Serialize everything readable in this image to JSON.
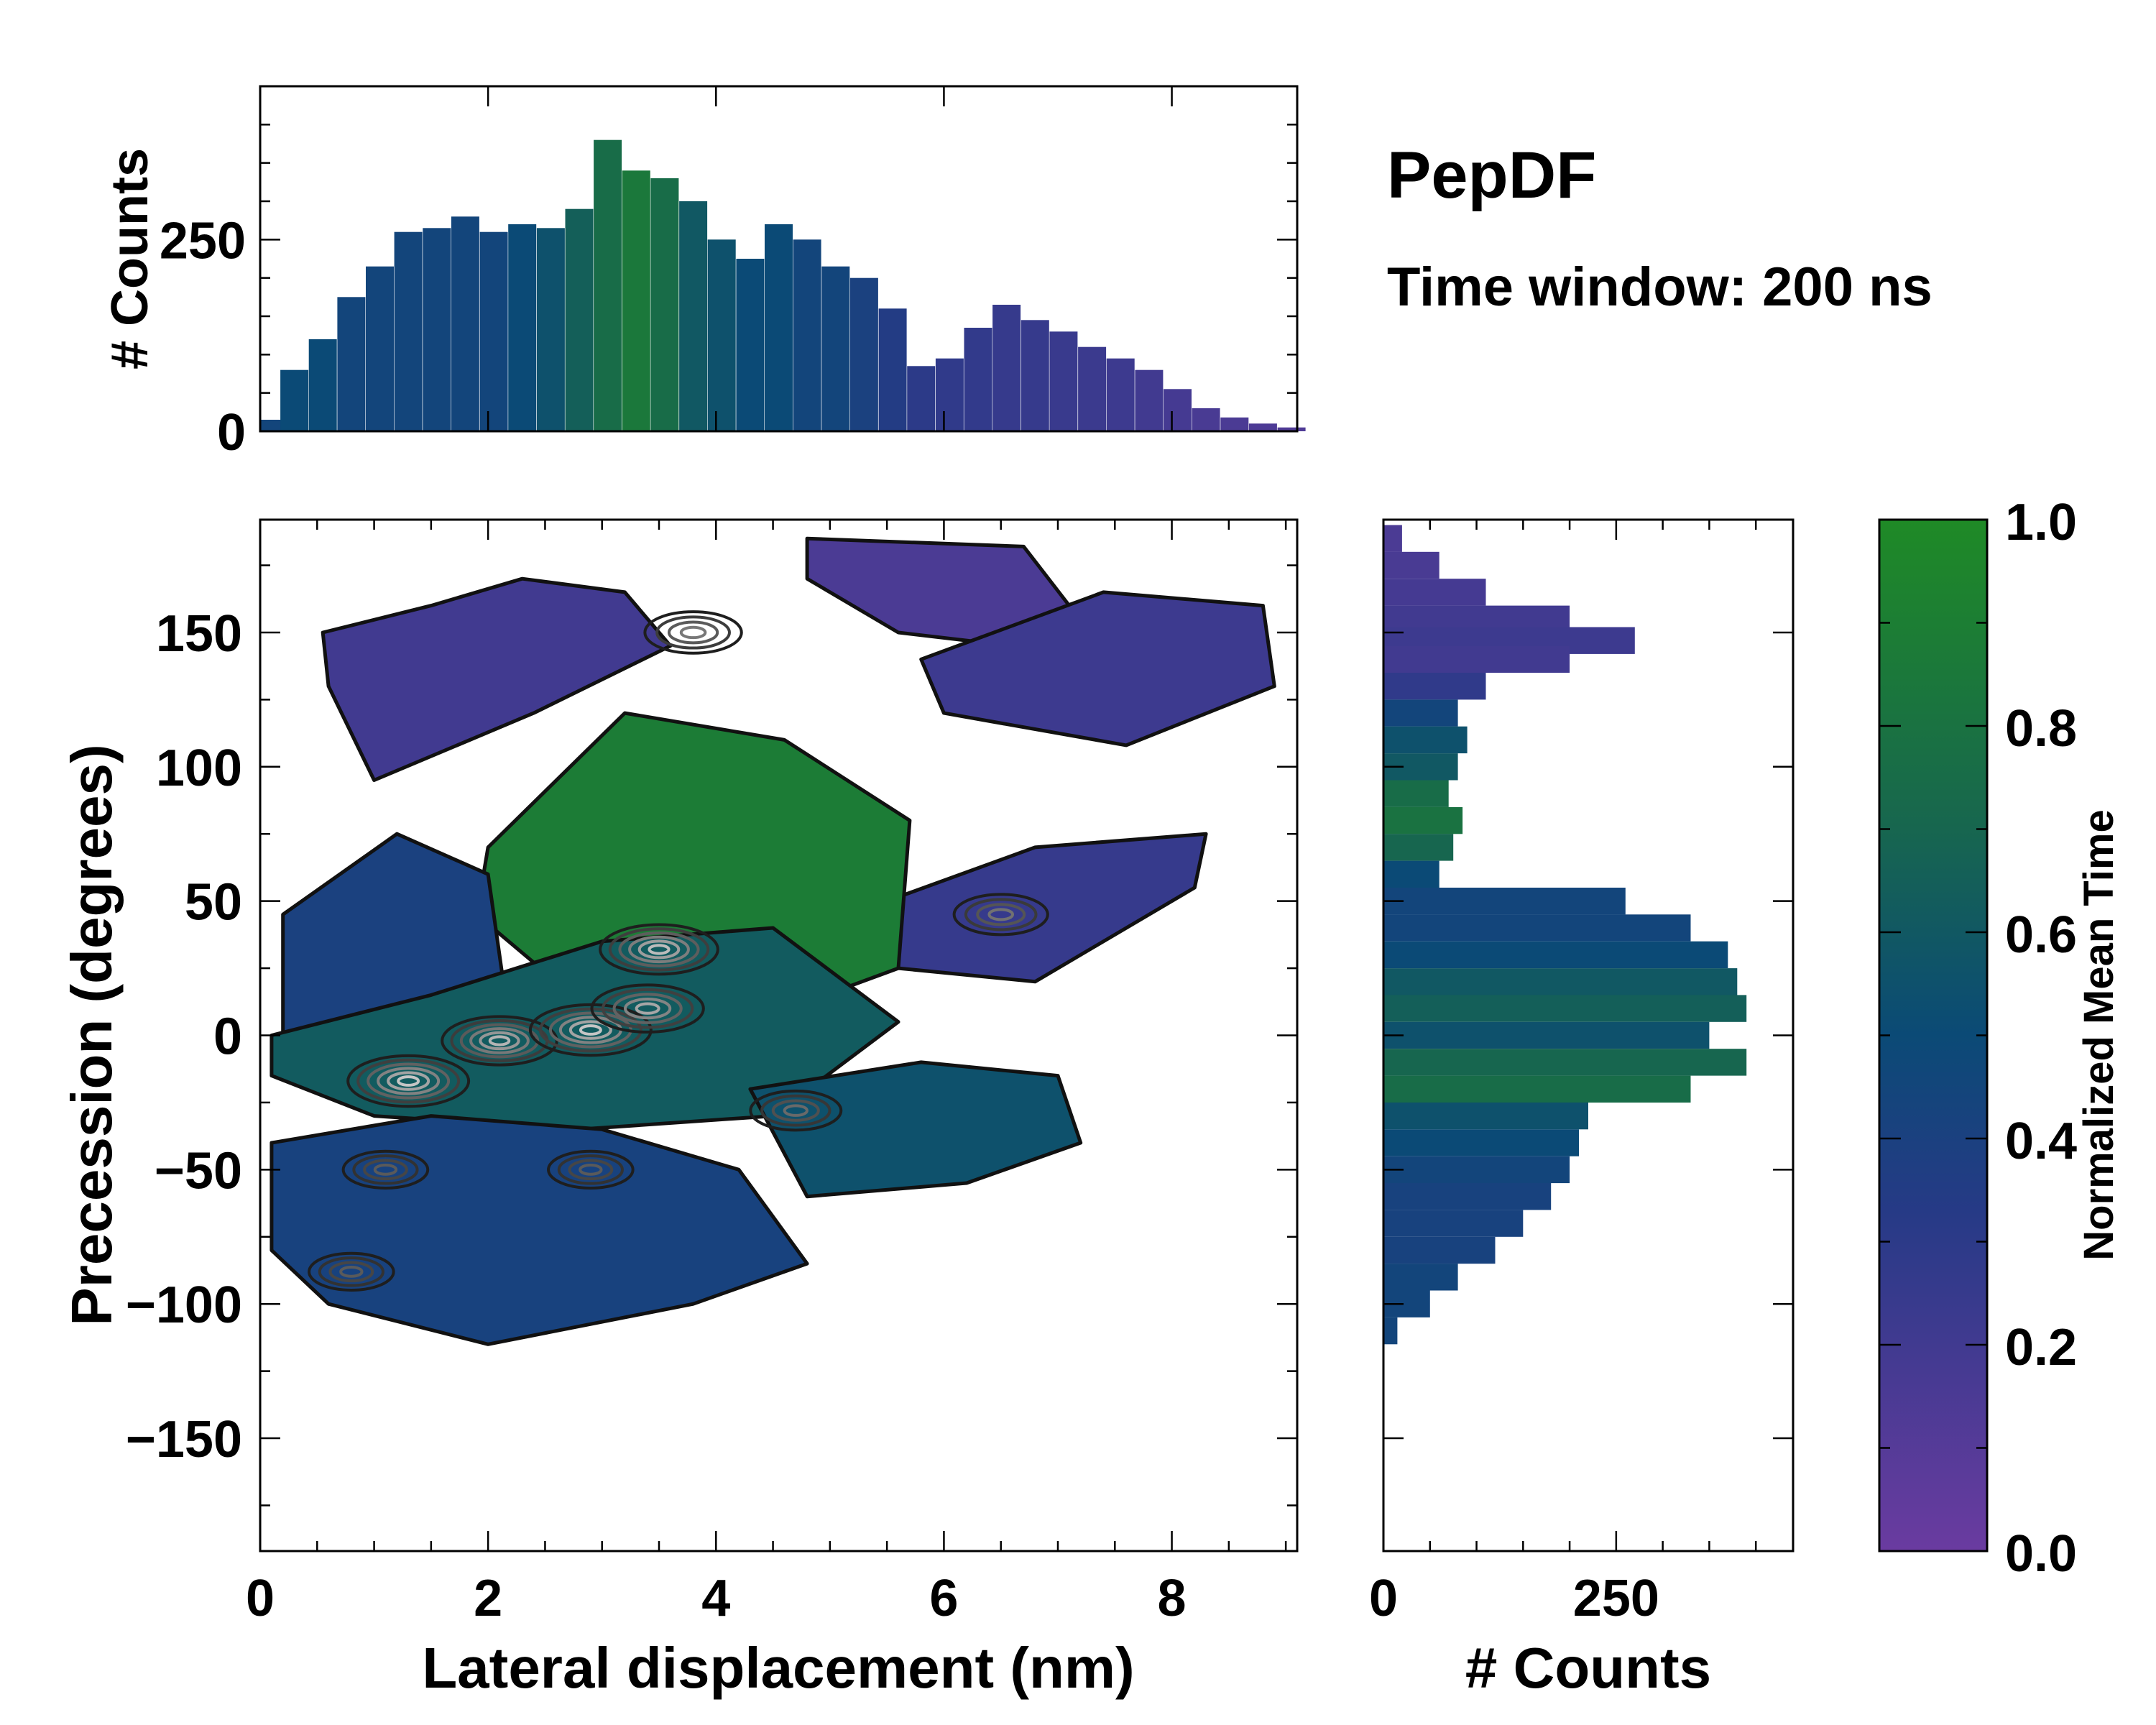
{
  "chart_data": {
    "type": "heatmap",
    "title": "PepDF",
    "subtitle": "Time window: 200 ns",
    "main": {
      "xlabel": "Lateral displacement (nm)",
      "ylabel": "Precession (degrees)",
      "xlim": [
        0,
        9.1
      ],
      "ylim": [
        -192,
        192
      ],
      "xticks": [
        0,
        2,
        4,
        6,
        8
      ],
      "yticks": [
        -150,
        -100,
        -50,
        0,
        50,
        100,
        150
      ],
      "ytick_labels": [
        "−150",
        "−100",
        "−50",
        "0",
        "50",
        "100",
        "150"
      ],
      "regions": [
        {
          "name": "upper-violet",
          "mean_time": 0.2,
          "x": [
            0.55,
            1.5,
            2.3,
            3.2,
            3.6,
            2.4,
            1.0,
            0.6
          ],
          "y": [
            150,
            160,
            170,
            165,
            145,
            120,
            95,
            130
          ]
        },
        {
          "name": "upper-right-violet",
          "mean_time": 0.15,
          "x": [
            4.8,
            6.7,
            7.1,
            6.6,
            5.6,
            4.8
          ],
          "y": [
            185,
            182,
            160,
            145,
            150,
            170
          ]
        },
        {
          "name": "right-violet",
          "mean_time": 0.22,
          "x": [
            5.8,
            7.4,
            8.8,
            8.9,
            7.6,
            6.0
          ],
          "y": [
            140,
            165,
            160,
            130,
            108,
            120
          ]
        },
        {
          "name": "mid-right-violet",
          "mean_time": 0.25,
          "x": [
            5.5,
            6.8,
            8.3,
            8.2,
            6.8,
            5.6
          ],
          "y": [
            50,
            70,
            75,
            55,
            20,
            25
          ]
        },
        {
          "name": "center-green",
          "mean_time": 0.88,
          "x": [
            2.0,
            3.2,
            4.6,
            5.7,
            5.6,
            4.0,
            2.6,
            1.9
          ],
          "y": [
            70,
            120,
            110,
            80,
            25,
            0,
            20,
            45
          ]
        },
        {
          "name": "left-blue",
          "mean_time": 0.4,
          "x": [
            0.2,
            1.2,
            2.0,
            2.2,
            1.2,
            0.2
          ],
          "y": [
            45,
            75,
            60,
            0,
            -10,
            0
          ]
        },
        {
          "name": "center-teal",
          "mean_time": 0.62,
          "x": [
            0.1,
            1.5,
            3.0,
            4.5,
            5.6,
            4.5,
            2.8,
            1.0,
            0.1
          ],
          "y": [
            0,
            15,
            35,
            40,
            5,
            -30,
            -35,
            -30,
            -15
          ]
        },
        {
          "name": "lower-blue",
          "mean_time": 0.42,
          "x": [
            0.1,
            1.5,
            3.0,
            4.2,
            4.8,
            3.8,
            2.0,
            0.6,
            0.1
          ],
          "y": [
            -40,
            -30,
            -35,
            -50,
            -85,
            -100,
            -115,
            -100,
            -80
          ]
        },
        {
          "name": "lower-right-teal",
          "mean_time": 0.55,
          "x": [
            4.3,
            5.8,
            7.0,
            7.2,
            6.2,
            4.8
          ],
          "y": [
            -20,
            -10,
            -15,
            -40,
            -55,
            -60
          ]
        }
      ],
      "density_peaks": [
        {
          "x": 1.3,
          "y": -17,
          "level": 1.0
        },
        {
          "x": 2.1,
          "y": -2,
          "level": 0.9
        },
        {
          "x": 2.9,
          "y": 2,
          "level": 1.0
        },
        {
          "x": 3.5,
          "y": 32,
          "level": 0.95
        },
        {
          "x": 3.4,
          "y": 10,
          "level": 0.85
        },
        {
          "x": 3.8,
          "y": 150,
          "level": 0.6
        },
        {
          "x": 6.5,
          "y": 45,
          "level": 0.55
        },
        {
          "x": 4.7,
          "y": -28,
          "level": 0.5
        },
        {
          "x": 1.1,
          "y": -50,
          "level": 0.4
        },
        {
          "x": 0.8,
          "y": -88,
          "level": 0.4
        },
        {
          "x": 2.9,
          "y": -50,
          "level": 0.4
        }
      ]
    },
    "top_histogram": {
      "ylabel": "# Counts",
      "xlim": [
        0,
        9.1
      ],
      "ylim": [
        0,
        450
      ],
      "yticks": [
        0,
        250
      ],
      "bin_x": [
        0.05,
        0.3,
        0.55,
        0.8,
        1.05,
        1.3,
        1.55,
        1.8,
        2.05,
        2.3,
        2.55,
        2.8,
        3.05,
        3.3,
        3.55,
        3.8,
        4.05,
        4.3,
        4.55,
        4.8,
        5.05,
        5.3,
        5.55,
        5.8,
        6.05,
        6.3,
        6.55,
        6.8,
        7.05,
        7.3,
        7.55,
        7.8,
        8.05,
        8.3,
        8.55,
        8.8,
        9.05
      ],
      "counts": [
        15,
        80,
        120,
        175,
        215,
        260,
        265,
        280,
        260,
        270,
        265,
        290,
        380,
        340,
        330,
        300,
        250,
        225,
        270,
        250,
        215,
        200,
        160,
        85,
        95,
        135,
        165,
        145,
        130,
        110,
        95,
        80,
        55,
        30,
        18,
        10,
        5
      ],
      "mean_time": [
        0.45,
        0.5,
        0.5,
        0.45,
        0.45,
        0.45,
        0.45,
        0.45,
        0.45,
        0.5,
        0.55,
        0.65,
        0.75,
        0.85,
        0.75,
        0.6,
        0.55,
        0.5,
        0.5,
        0.45,
        0.45,
        0.4,
        0.35,
        0.3,
        0.28,
        0.27,
        0.25,
        0.25,
        0.24,
        0.23,
        0.22,
        0.2,
        0.18,
        0.16,
        0.15,
        0.14,
        0.13
      ]
    },
    "right_histogram": {
      "xlabel": "# Counts",
      "xlim": [
        0,
        440
      ],
      "xticks": [
        0,
        250
      ],
      "ylim": [
        -192,
        192
      ],
      "bin_y": [
        185,
        175,
        165,
        155,
        147,
        140,
        130,
        120,
        110,
        100,
        90,
        80,
        70,
        60,
        50,
        40,
        30,
        20,
        10,
        0,
        -10,
        -20,
        -30,
        -40,
        -50,
        -60,
        -70,
        -80,
        -90,
        -100,
        -110
      ],
      "counts": [
        20,
        60,
        110,
        200,
        270,
        200,
        110,
        80,
        90,
        80,
        70,
        85,
        75,
        60,
        260,
        330,
        370,
        380,
        390,
        350,
        390,
        330,
        220,
        210,
        200,
        180,
        150,
        120,
        80,
        50,
        15
      ],
      "mean_time": [
        0.15,
        0.16,
        0.18,
        0.2,
        0.22,
        0.2,
        0.28,
        0.45,
        0.55,
        0.6,
        0.75,
        0.8,
        0.7,
        0.5,
        0.45,
        0.45,
        0.5,
        0.6,
        0.65,
        0.55,
        0.7,
        0.75,
        0.55,
        0.5,
        0.45,
        0.42,
        0.42,
        0.42,
        0.45,
        0.45,
        0.45
      ]
    },
    "colorbar": {
      "label": "Normalized Mean Time",
      "range": [
        0,
        1
      ],
      "ticks": [
        "0.0",
        "0.2",
        "0.4",
        "0.6",
        "0.8",
        "1.0"
      ],
      "colors": [
        "#6a3ba0",
        "#243b86",
        "#0b4a76",
        "#1d8a2c"
      ]
    }
  }
}
